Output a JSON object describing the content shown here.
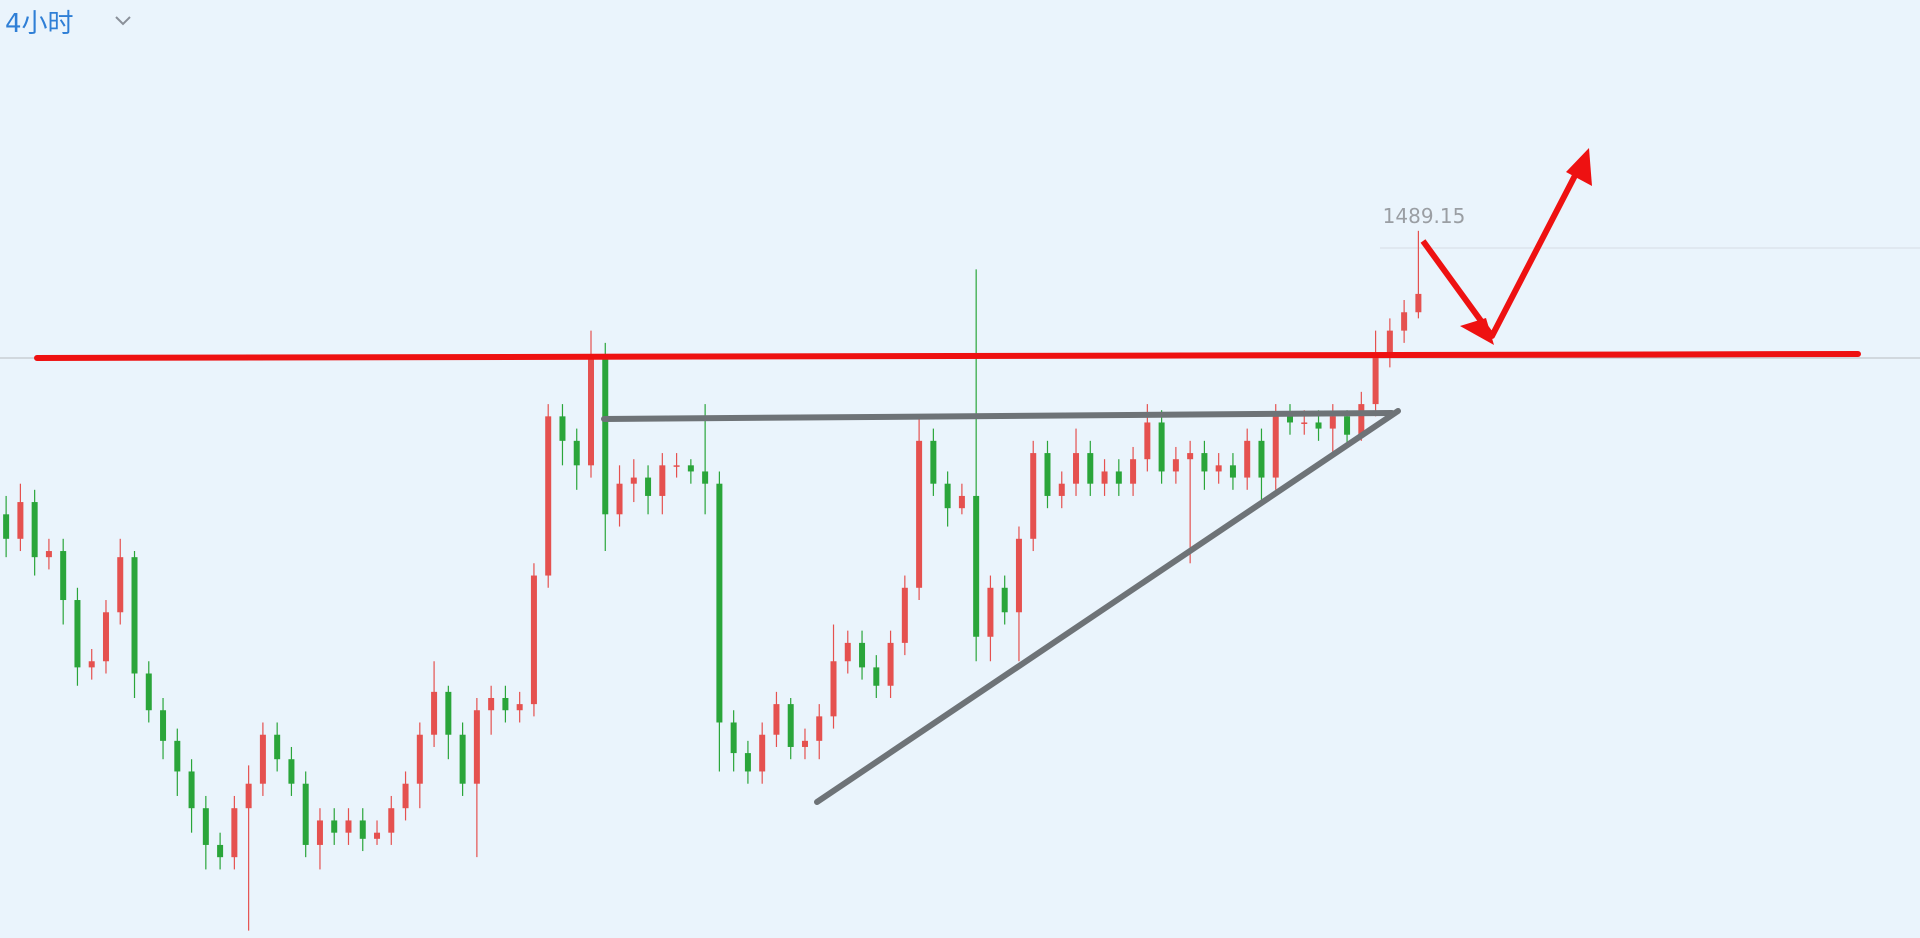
{
  "chart_data": {
    "type": "candlestick",
    "timeframe": "4小时",
    "up_color": "#e5514f",
    "down_color": "#2aa53a",
    "ylim": [
      1431.4,
      1508
    ],
    "open": [
      1466,
      1464,
      1467,
      1462.5,
      1463,
      1459,
      1453.5,
      1454,
      1458,
      1462.5,
      1453,
      1450,
      1447.5,
      1445,
      1442,
      1439,
      1438,
      1442,
      1444,
      1448,
      1446,
      1444,
      1439,
      1441,
      1440,
      1441,
      1439.5,
      1440,
      1442,
      1444,
      1448,
      1451.5,
      1448,
      1444,
      1450,
      1451,
      1450,
      1450.5,
      1461,
      1474,
      1472,
      1470,
      1479,
      1466,
      1468.5,
      1469,
      1467.5,
      1470,
      1470,
      1469.5,
      1468.5,
      1449,
      1446.5,
      1445,
      1448,
      1450.5,
      1447,
      1447.5,
      1449.5,
      1454,
      1455.5,
      1453.5,
      1452,
      1455.5,
      1460,
      1472,
      1468.5,
      1466.5,
      1467.5,
      1456,
      1460,
      1458,
      1464,
      1471,
      1467.5,
      1468.5,
      1471,
      1468.5,
      1469.5,
      1468.5,
      1470.5,
      1473.5,
      1469.5,
      1470.5,
      1471,
      1469.5,
      1470,
      1469,
      1472,
      1469,
      1474,
      1473.5,
      1473.5,
      1473,
      1474,
      1472.5,
      1475,
      1479,
      1481,
      1482.5
    ],
    "high": [
      1467.5,
      1468.5,
      1468,
      1464,
      1464,
      1460,
      1455,
      1459,
      1464,
      1463,
      1454,
      1451,
      1448.5,
      1446,
      1443,
      1440,
      1443,
      1445.5,
      1449,
      1449,
      1447,
      1445,
      1442,
      1442,
      1442,
      1442,
      1441,
      1443,
      1445,
      1449,
      1454,
      1452,
      1449,
      1451,
      1452,
      1452,
      1451.5,
      1462,
      1475,
      1475,
      1473,
      1481,
      1480,
      1470,
      1470.5,
      1470,
      1471,
      1471,
      1470.5,
      1475,
      1469.5,
      1450,
      1447.5,
      1449,
      1451.5,
      1451,
      1448.5,
      1450.5,
      1457,
      1456.5,
      1456.5,
      1454.5,
      1456.5,
      1461,
      1474,
      1473,
      1469.5,
      1468.5,
      1486,
      1461,
      1461,
      1465,
      1472,
      1472,
      1469.5,
      1473,
      1472,
      1470.5,
      1470.5,
      1471.5,
      1475,
      1474.5,
      1471.5,
      1472,
      1472,
      1471,
      1471,
      1473,
      1473,
      1475,
      1475,
      1474.5,
      1474.5,
      1475,
      1474.5,
      1476,
      1481,
      1482,
      1483.5,
      1489.15
    ],
    "low": [
      1462.5,
      1463,
      1461,
      1461.5,
      1457,
      1452,
      1452.5,
      1453,
      1457,
      1451,
      1449,
      1446,
      1443,
      1440,
      1437,
      1437,
      1437,
      1432,
      1443,
      1445,
      1443,
      1438,
      1437,
      1439,
      1439,
      1438.5,
      1439,
      1439,
      1441,
      1442,
      1447,
      1446,
      1443,
      1438,
      1448,
      1449,
      1449,
      1449.5,
      1460,
      1470,
      1468,
      1469,
      1463,
      1465,
      1467,
      1466,
      1466,
      1469,
      1468.5,
      1466,
      1445,
      1445,
      1444,
      1444,
      1447,
      1446,
      1446,
      1446,
      1448.5,
      1453,
      1452.5,
      1451,
      1451,
      1454.5,
      1459,
      1467.5,
      1465,
      1466,
      1454,
      1454,
      1457,
      1454,
      1463,
      1466.5,
      1466.5,
      1467.5,
      1467.5,
      1467.5,
      1467.5,
      1467.5,
      1469.5,
      1468.5,
      1468.5,
      1462,
      1468,
      1468.5,
      1468,
      1468,
      1467,
      1468,
      1472.5,
      1472.5,
      1472,
      1471,
      1471.5,
      1472,
      1474,
      1478,
      1480,
      1482
    ],
    "close": [
      1464,
      1467,
      1462.5,
      1463,
      1459,
      1453.5,
      1454,
      1458,
      1462.5,
      1453,
      1450,
      1447.5,
      1445,
      1442,
      1439,
      1438,
      1442,
      1444,
      1448,
      1446,
      1444,
      1439,
      1441,
      1440,
      1441,
      1439.5,
      1440,
      1442,
      1444,
      1448,
      1451.5,
      1448,
      1444,
      1450,
      1451,
      1450,
      1450.5,
      1461,
      1474,
      1472,
      1470,
      1479,
      1466,
      1468.5,
      1469,
      1467.5,
      1470,
      1470,
      1469.5,
      1468.5,
      1449,
      1446.5,
      1445,
      1448,
      1450.5,
      1447,
      1447.5,
      1449.5,
      1454,
      1455.5,
      1453.5,
      1452,
      1455.5,
      1460,
      1472,
      1468.5,
      1466.5,
      1467.5,
      1456,
      1460,
      1458,
      1464,
      1471,
      1467.5,
      1468.5,
      1471,
      1468.5,
      1469.5,
      1468.5,
      1470.5,
      1473.5,
      1469.5,
      1470.5,
      1471,
      1469.5,
      1470,
      1469,
      1472,
      1469,
      1474,
      1473.5,
      1473.5,
      1473,
      1474,
      1472.5,
      1475,
      1479,
      1481,
      1482.5,
      1484
    ]
  }
}
